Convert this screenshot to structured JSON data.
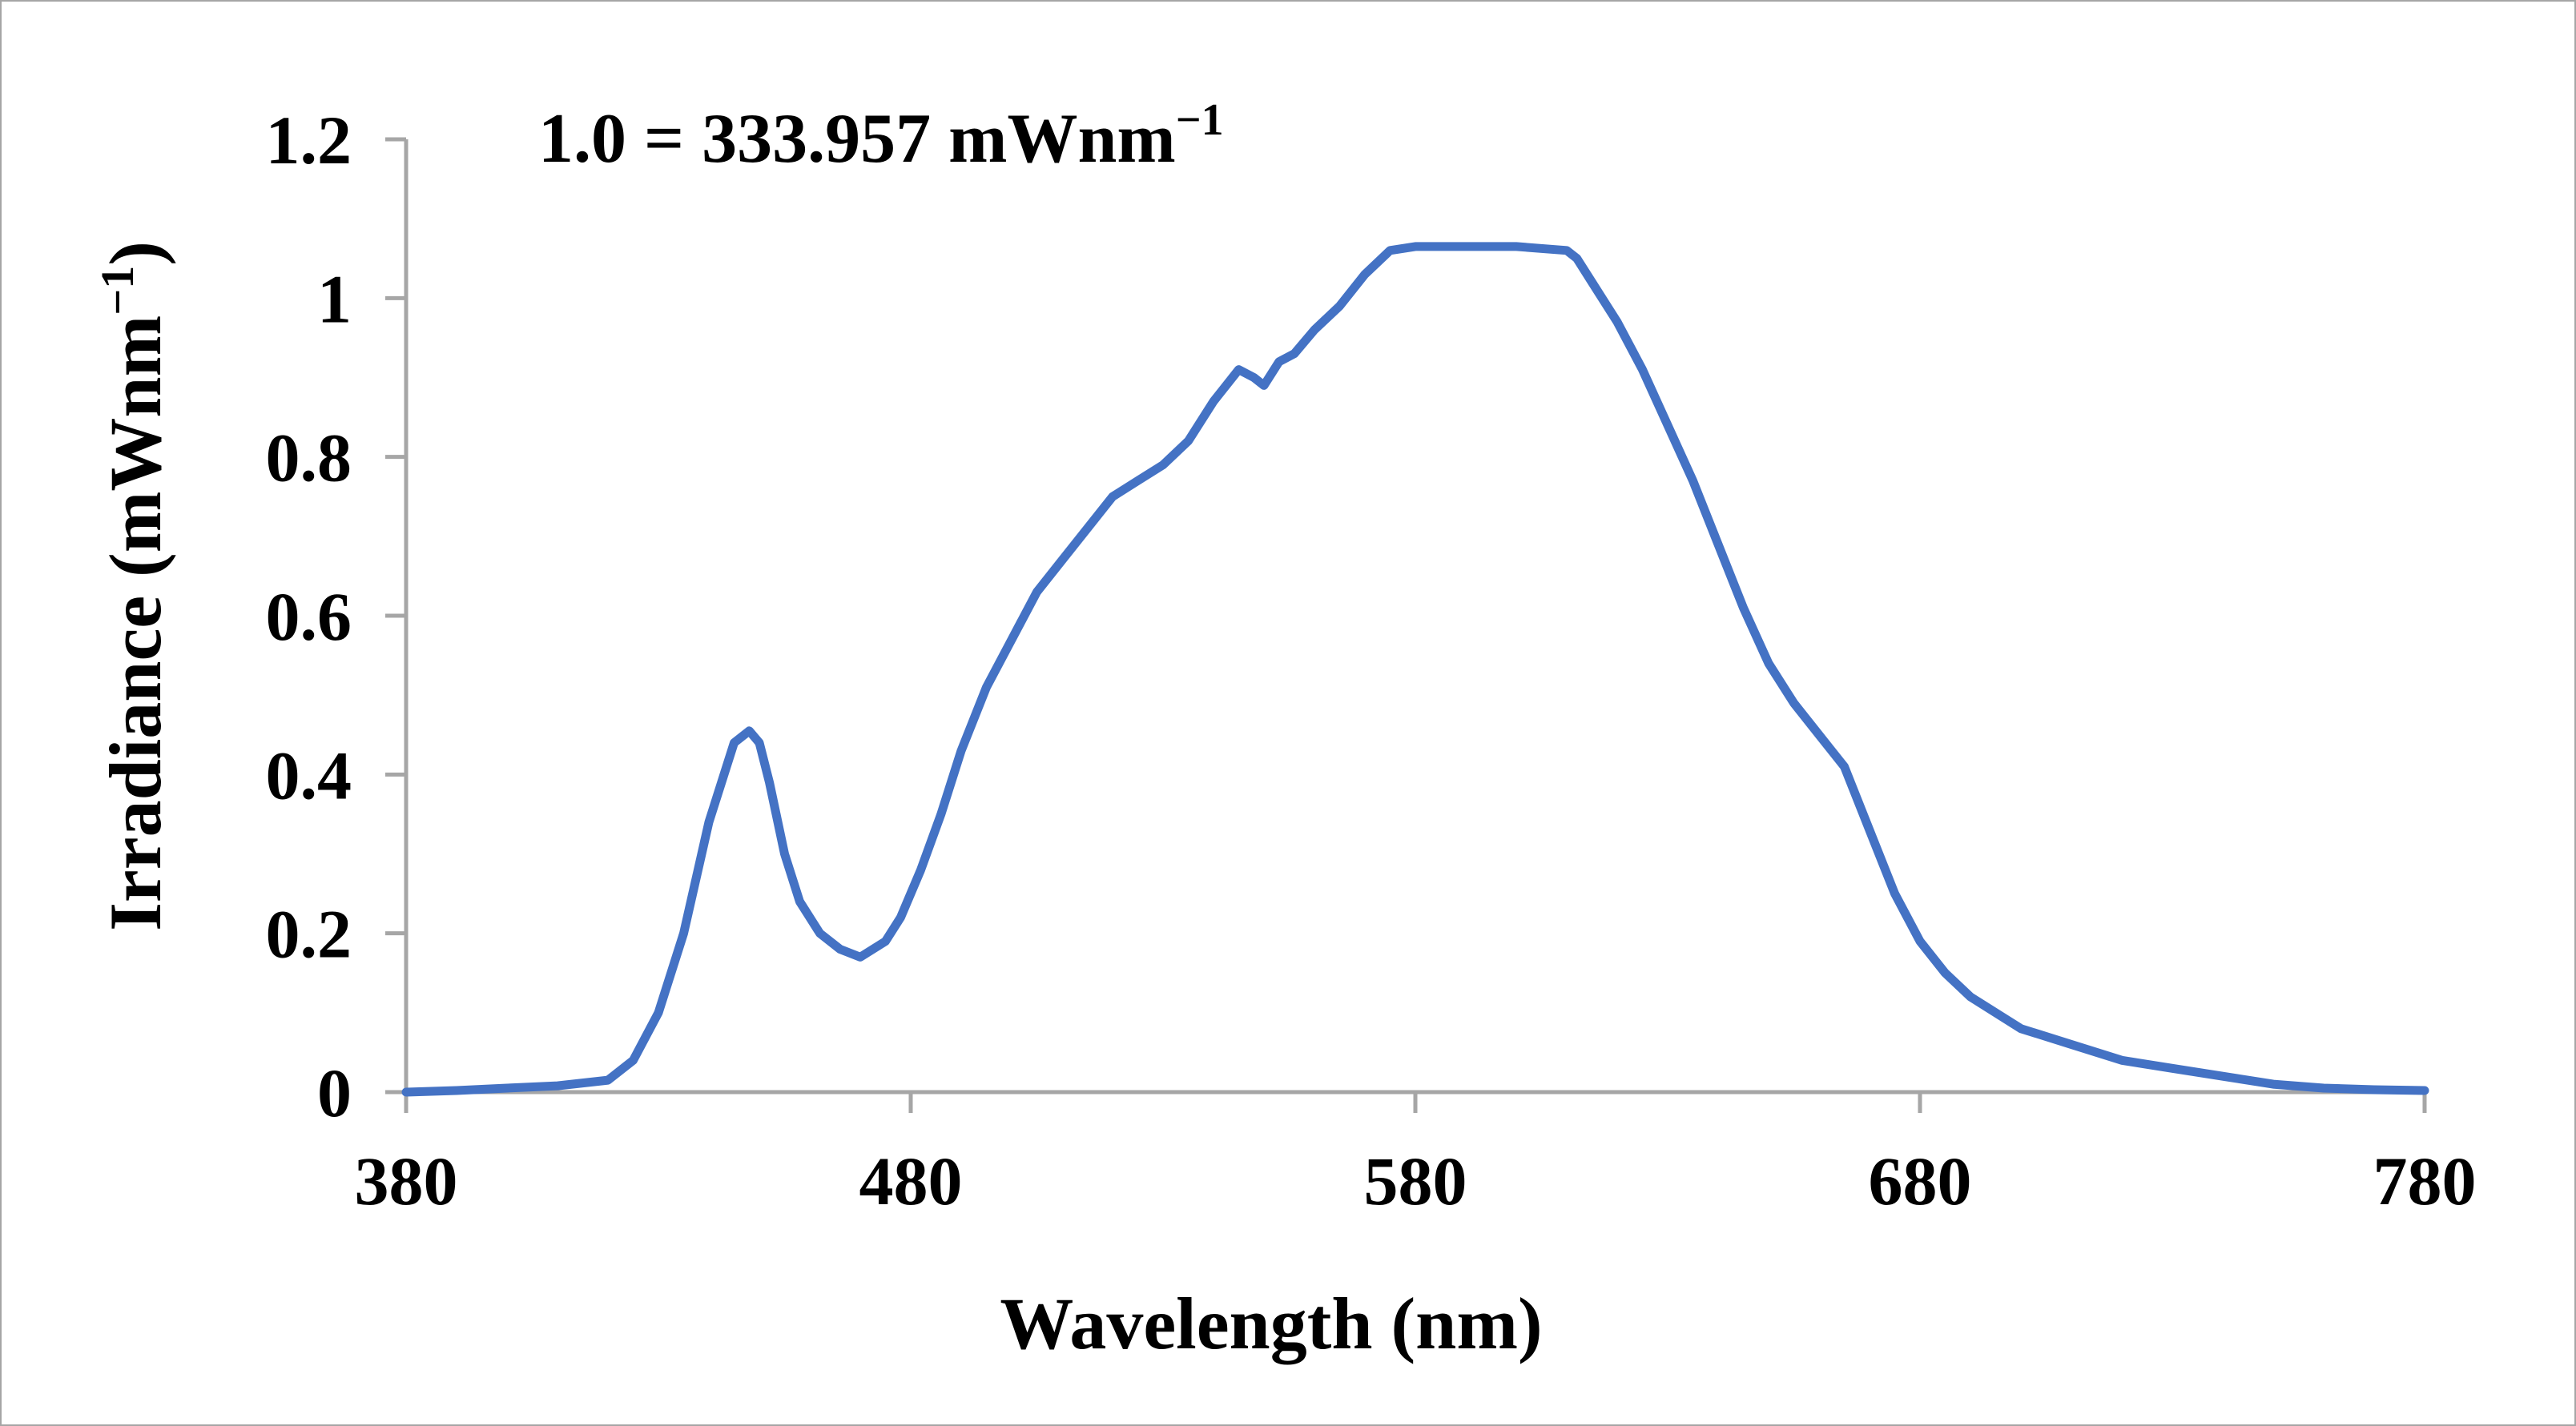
{
  "chart_data": {
    "type": "line",
    "title": "",
    "annotation": "1.0 = 333.957 mWnm",
    "annotation_superscript": "−1",
    "xlabel": "Wavelength (nm)",
    "ylabel": "Irradiance (mWnm",
    "ylabel_superscript": "−1",
    "ylabel_close": ")",
    "xlim": [
      380,
      780
    ],
    "ylim": [
      0,
      1.2
    ],
    "x_ticks": [
      380,
      480,
      580,
      680,
      780
    ],
    "x_tick_labels": [
      "380",
      "480",
      "580",
      "680",
      "780"
    ],
    "y_ticks": [
      0,
      0.2,
      0.4,
      0.6,
      0.8,
      1.0,
      1.2
    ],
    "y_tick_labels": [
      "0",
      "0.2",
      "0.4",
      "0.6",
      "0.8",
      "1",
      "1.2"
    ],
    "grid": false,
    "legend": "none",
    "series": [
      {
        "name": "Irradiance",
        "color": "#4472c4",
        "x": [
          380,
          390,
          400,
          410,
          420,
          425,
          430,
          435,
          440,
          445,
          448,
          450,
          452,
          455,
          458,
          462,
          466,
          470,
          475,
          478,
          482,
          486,
          490,
          495,
          500,
          505,
          510,
          515,
          520,
          525,
          530,
          535,
          540,
          545,
          548,
          550,
          553,
          556,
          560,
          565,
          570,
          575,
          580,
          585,
          590,
          600,
          610,
          612,
          615,
          620,
          625,
          630,
          635,
          640,
          645,
          650,
          655,
          660,
          665,
          670,
          675,
          680,
          685,
          690,
          700,
          710,
          720,
          730,
          740,
          750,
          760,
          770,
          780
        ],
        "values": [
          0.0,
          0.002,
          0.005,
          0.008,
          0.015,
          0.04,
          0.1,
          0.2,
          0.34,
          0.44,
          0.455,
          0.44,
          0.39,
          0.3,
          0.24,
          0.2,
          0.18,
          0.17,
          0.19,
          0.22,
          0.28,
          0.35,
          0.43,
          0.51,
          0.57,
          0.63,
          0.67,
          0.71,
          0.75,
          0.77,
          0.79,
          0.82,
          0.87,
          0.91,
          0.9,
          0.89,
          0.92,
          0.93,
          0.96,
          0.99,
          1.03,
          1.06,
          1.065,
          1.065,
          1.065,
          1.065,
          1.06,
          1.05,
          1.02,
          0.97,
          0.91,
          0.84,
          0.77,
          0.69,
          0.61,
          0.54,
          0.49,
          0.45,
          0.41,
          0.33,
          0.25,
          0.19,
          0.15,
          0.12,
          0.08,
          0.06,
          0.04,
          0.03,
          0.02,
          0.01,
          0.005,
          0.003,
          0.002
        ]
      }
    ]
  }
}
